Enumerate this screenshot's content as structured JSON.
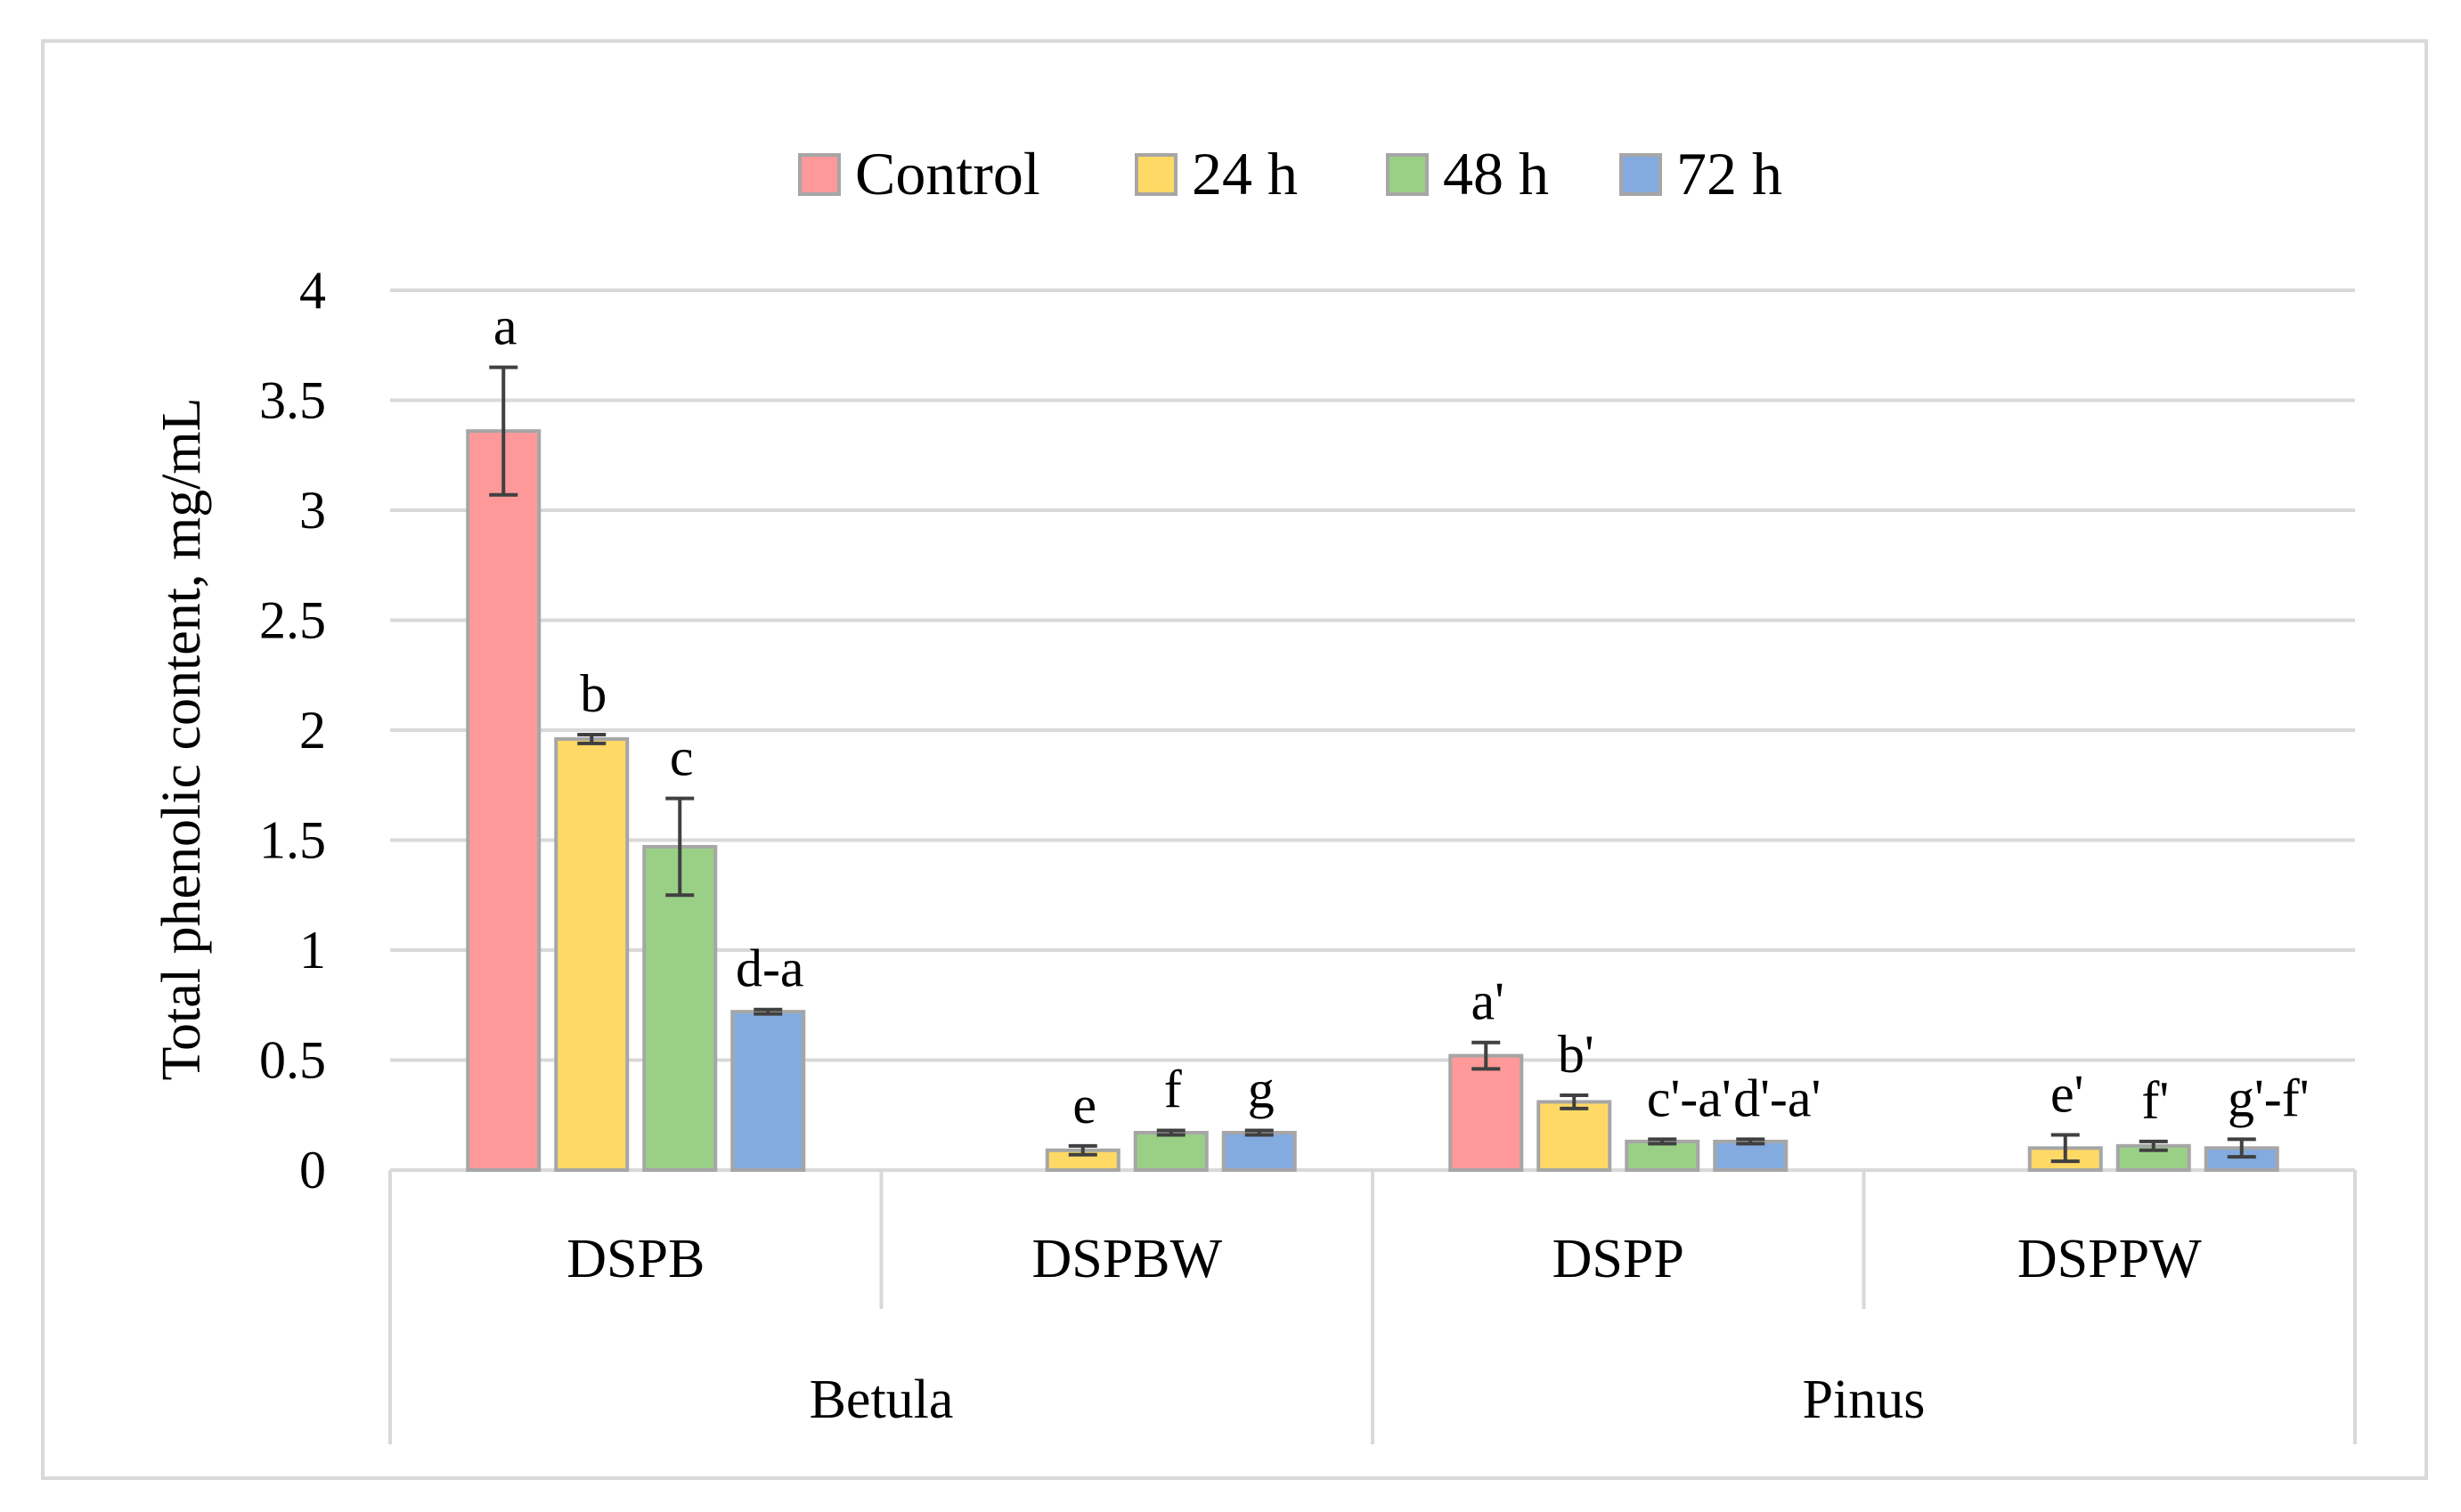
{
  "chart_data": {
    "type": "bar",
    "title": "",
    "ylabel": "Total phenolic content, mg/mL",
    "xlabel": "",
    "ylim": [
      0,
      4
    ],
    "yticks": [
      0,
      0.5,
      1,
      1.5,
      2,
      2.5,
      3,
      3.5,
      4
    ],
    "ytick_labels": [
      "0",
      "0.5",
      "1",
      "1.5",
      "2",
      "2.5",
      "3",
      "3.5",
      "4"
    ],
    "grid": true,
    "legend_position": "top-center",
    "categories": [
      "DSPB",
      "DSPBW",
      "DSPP",
      "DSPPW"
    ],
    "groups": [
      {
        "label": "Betula",
        "categories": [
          "DSPB",
          "DSPBW"
        ]
      },
      {
        "label": "Pinus",
        "categories": [
          "DSPP",
          "DSPPW"
        ]
      }
    ],
    "series": [
      {
        "name": "Control",
        "color": "#ff9999",
        "values": [
          3.36,
          null,
          0.52,
          null
        ],
        "errors": [
          0.29,
          null,
          0.06,
          null
        ],
        "labels": [
          "a",
          "",
          "a'",
          ""
        ]
      },
      {
        "name": "24 h",
        "color": "#ffd966",
        "values": [
          1.96,
          0.09,
          0.31,
          0.1
        ],
        "errors": [
          0.02,
          0.02,
          0.03,
          0.06
        ],
        "labels": [
          "b",
          "e",
          "b'",
          "e'"
        ]
      },
      {
        "name": "48 h",
        "color": "#99d086",
        "values": [
          1.47,
          0.17,
          0.13,
          0.11
        ],
        "errors": [
          0.22,
          0.01,
          0.01,
          0.02
        ],
        "labels": [
          "c",
          "f",
          "c'-a'",
          "f'"
        ]
      },
      {
        "name": "72 h",
        "color": "#84abe0",
        "values": [
          0.72,
          0.17,
          0.13,
          0.1
        ],
        "errors": [
          0.01,
          0.01,
          0.01,
          0.04
        ],
        "labels": [
          "d-a",
          "g",
          "d'-a'",
          "g'-f'"
        ]
      }
    ]
  }
}
